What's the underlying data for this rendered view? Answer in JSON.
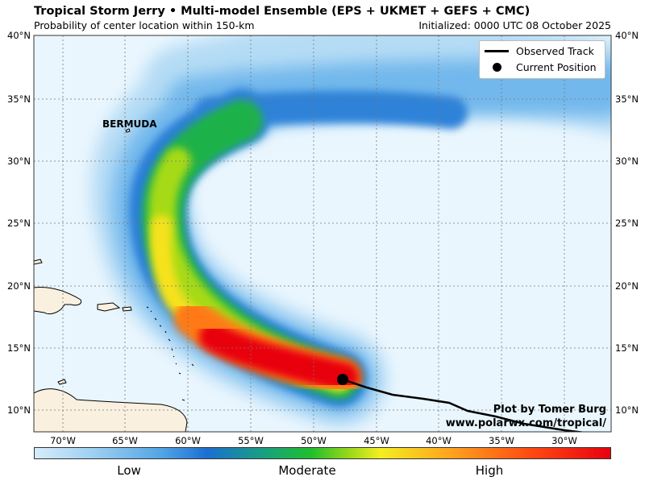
{
  "title": "Tropical Storm Jerry • Multi-model Ensemble (EPS + UKMET + GEFS + CMC)",
  "subtitle": "Probability of center location within 150-km",
  "initialized": "Initialized: 0000 UTC 08 October 2025",
  "legend": {
    "track": "Observed Track",
    "position": "Current Position"
  },
  "place_label": "BERMUDA",
  "credit": {
    "line1": "Plot by Tomer Burg",
    "line2": "www.polarwx.com/tropical/"
  },
  "lat_ticks": [
    "40°N",
    "35°N",
    "30°N",
    "25°N",
    "20°N",
    "15°N",
    "10°N"
  ],
  "lon_ticks": [
    "70°W",
    "65°W",
    "60°W",
    "55°W",
    "50°W",
    "45°W",
    "40°W",
    "35°W",
    "30°W"
  ],
  "colorbar": {
    "low": "Low",
    "moderate": "Moderate",
    "high": "High"
  },
  "colors": {
    "ocean": "#eaf6fe",
    "land": "#f9f0df",
    "track": "#000000"
  }
}
